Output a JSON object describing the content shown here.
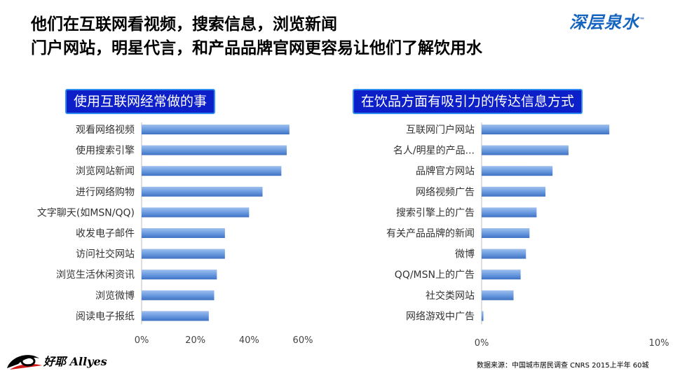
{
  "headline": {
    "line1": "他们在互联网看视频，搜索信息，浏览新闻",
    "line2": "门户网站，明星代言，和产品品牌官网更容易让他们了解饮用水"
  },
  "brand": {
    "name": "深层泉水",
    "tm": "™"
  },
  "chart_data": [
    {
      "type": "bar",
      "orientation": "horizontal",
      "title": "使用互联网经常做的事",
      "categories": [
        "观看网络视频",
        "使用搜索引擎",
        "浏览网站新闻",
        "进行网络购物",
        "文字聊天(如MSN/QQ)",
        "收发电子邮件",
        "访问社交网站",
        "浏览生活休闲资讯",
        "浏览微博",
        "阅读电子报纸"
      ],
      "values": [
        55,
        54,
        52,
        45,
        40,
        31,
        31,
        28,
        27,
        25
      ],
      "xlim": [
        0,
        60
      ],
      "ticks": [
        "0%",
        "20%",
        "40%",
        "60%"
      ],
      "color": "#5b8fd6"
    },
    {
      "type": "bar",
      "orientation": "horizontal",
      "title": "在饮品方面有吸引力的传达信息方式",
      "categories": [
        "互联网门户网站",
        "名人/明星的产品...",
        "品牌官方网站",
        "网络视频广告",
        "搜索引擎上的广告",
        "有关产品品牌的新闻",
        "微博",
        "QQ/MSN上的广告",
        "社交类网站",
        "网络游戏中广告"
      ],
      "values": [
        7.2,
        4.9,
        4.0,
        3.6,
        3.1,
        2.7,
        2.5,
        2.2,
        1.8,
        0.1
      ],
      "xlim": [
        0,
        10
      ],
      "ticks": [
        "0%",
        "10%"
      ],
      "color": "#5b8fd6"
    }
  ],
  "footer": {
    "logo_text": "好耶 Allyes",
    "source": "数据来源：中国城市居民调查 CNRS 2015上半年 60城"
  }
}
